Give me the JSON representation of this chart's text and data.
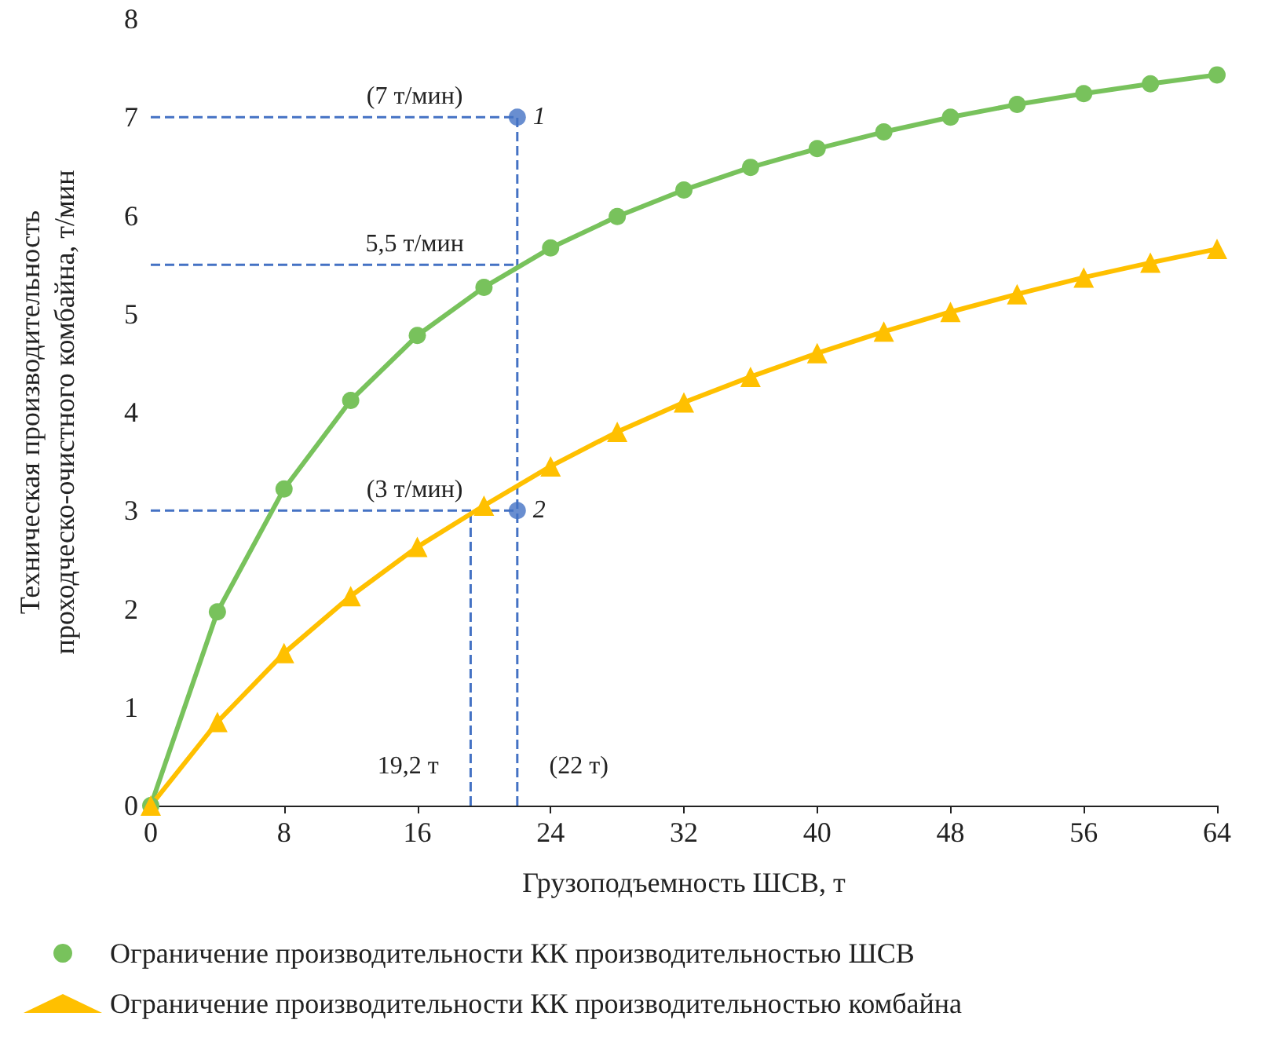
{
  "chart_data": {
    "type": "line",
    "xlabel": "Грузоподъемность ШСВ, т",
    "ylabel": "Техническая производительность проходческо-очистного комбайна, т/мин",
    "x": [
      0,
      4,
      8,
      12,
      16,
      20,
      24,
      28,
      32,
      36,
      40,
      44,
      48,
      52,
      56,
      60,
      64
    ],
    "series": [
      {
        "name": "Ограничение производительности КК производительностью ШСВ",
        "color": "#78c25c",
        "marker": "circle",
        "values": [
          0,
          1.97,
          3.22,
          4.12,
          4.78,
          5.27,
          5.67,
          5.99,
          6.26,
          6.49,
          6.68,
          6.85,
          7.0,
          7.13,
          7.24,
          7.34,
          7.43
        ]
      },
      {
        "name": "Ограничение производительности КК производительностью комбайна",
        "color": "#ffc000",
        "marker": "triangle",
        "values": [
          0,
          0.85,
          1.55,
          2.13,
          2.63,
          3.05,
          3.45,
          3.8,
          4.1,
          4.36,
          4.6,
          4.82,
          5.02,
          5.2,
          5.37,
          5.52,
          5.66
        ]
      },
      {
        "type": "scatter",
        "x": [
          22,
          22
        ],
        "color": "#4472c4",
        "marker": "circle",
        "values": [
          7,
          3
        ]
      }
    ],
    "ref_lines": [
      {
        "axis": "y",
        "value": 7,
        "label": "(7 т/мин)",
        "color": "#4472c4",
        "line_style": "dashed"
      },
      {
        "axis": "y",
        "value": 5.5,
        "label": "5,5 т/мин",
        "color": "#4472c4",
        "line_style": "dashed"
      },
      {
        "axis": "y",
        "value": 3,
        "label": "(3 т/мин)",
        "color": "#4472c4",
        "line_style": "dashed"
      },
      {
        "axis": "x",
        "value": 22,
        "label": "(22 т)",
        "color": "#4472c4",
        "line_style": "dashed"
      },
      {
        "axis": "x",
        "value": 19.2,
        "label": "19,2 т",
        "color": "#4472c4",
        "line_style": "dashed"
      }
    ],
    "annotations": [
      {
        "text": "1",
        "x": 22,
        "y": 7
      },
      {
        "text": "2",
        "x": 22,
        "y": 3
      }
    ],
    "xlim": [
      0,
      64
    ],
    "xticks": [
      0,
      8,
      16,
      24,
      32,
      40,
      48,
      56,
      64
    ],
    "ylim": [
      0,
      8
    ],
    "yticks": [
      0,
      1,
      2,
      3,
      4,
      5,
      6,
      7,
      8
    ],
    "grid": false,
    "legend": "bottom",
    "line_style": "solid"
  }
}
